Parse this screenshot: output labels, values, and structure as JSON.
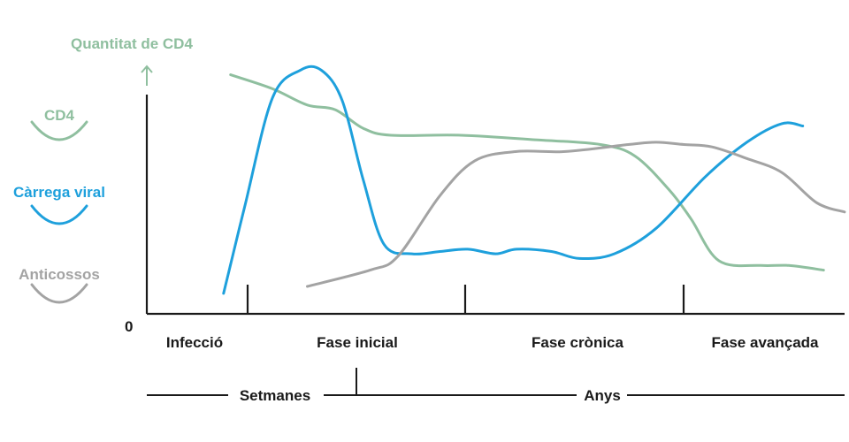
{
  "chart_data": {
    "type": "line",
    "title": "",
    "ylabel": "Quantitat de CD4",
    "y_zero_label": "0",
    "phases": [
      "Infecció",
      "Fase inicial",
      "Fase crònica",
      "Fase avançada"
    ],
    "timescale": {
      "left": "Setmanes",
      "right": "Anys"
    },
    "legend_placement": "left",
    "x_range": [
      0,
      100
    ],
    "y_range": [
      0,
      100
    ],
    "series": [
      {
        "name": "CD4",
        "color": "#8fbf9f",
        "points": [
          [
            12,
            99
          ],
          [
            18,
            93
          ],
          [
            23,
            86
          ],
          [
            27,
            84
          ],
          [
            31,
            76
          ],
          [
            35,
            73
          ],
          [
            45,
            73
          ],
          [
            56,
            71
          ],
          [
            65,
            69
          ],
          [
            70,
            64
          ],
          [
            75,
            49
          ],
          [
            78,
            37
          ],
          [
            82,
            19
          ],
          [
            88,
            17
          ],
          [
            92,
            17
          ],
          [
            97,
            15
          ]
        ]
      },
      {
        "name": "Càrrega viral",
        "color": "#1ea0dc",
        "points": [
          [
            11,
            5
          ],
          [
            14,
            42
          ],
          [
            18,
            89
          ],
          [
            22,
            101
          ],
          [
            25,
            101
          ],
          [
            28,
            88
          ],
          [
            31,
            54
          ],
          [
            34,
            26
          ],
          [
            38,
            22
          ],
          [
            42,
            23
          ],
          [
            46,
            24
          ],
          [
            50,
            22
          ],
          [
            53,
            24
          ],
          [
            58,
            23
          ],
          [
            62,
            20
          ],
          [
            67,
            22
          ],
          [
            73,
            33
          ],
          [
            80,
            55
          ],
          [
            86,
            70
          ],
          [
            91,
            78
          ],
          [
            94,
            77
          ]
        ]
      },
      {
        "name": "Anticossos",
        "color": "#a3a3a3",
        "points": [
          [
            23,
            8
          ],
          [
            32,
            15
          ],
          [
            36,
            21
          ],
          [
            42,
            47
          ],
          [
            47,
            62
          ],
          [
            53,
            66
          ],
          [
            60,
            66
          ],
          [
            69,
            69
          ],
          [
            73,
            70
          ],
          [
            77,
            69
          ],
          [
            81,
            68
          ],
          [
            86,
            63
          ],
          [
            91,
            57
          ],
          [
            96,
            44
          ],
          [
            100,
            40
          ]
        ]
      }
    ]
  }
}
